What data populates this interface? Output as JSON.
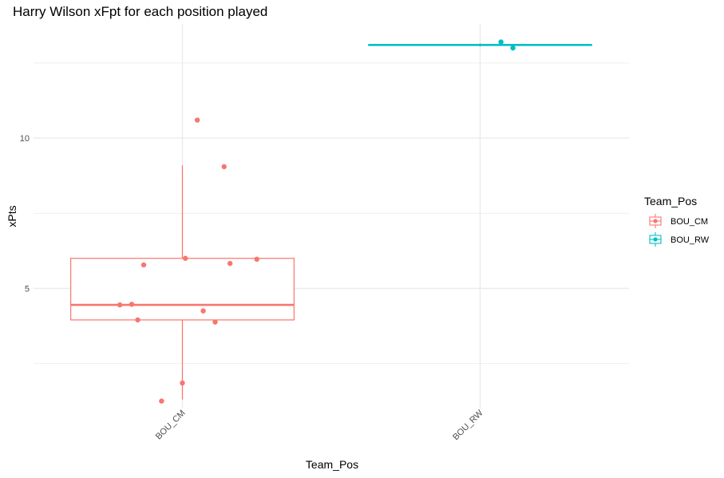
{
  "chart_data": {
    "type": "boxplot",
    "title": "Harry Wilson xFpt for each position played",
    "xlabel": "Team_Pos",
    "ylabel": "xPts",
    "categories": [
      "BOU_CM",
      "BOU_RW"
    ],
    "ylim": [
      1.0,
      13.8
    ],
    "yticks": [
      5,
      10
    ],
    "grid": true,
    "legend": {
      "title": "Team_Pos",
      "position": "right",
      "entries": [
        "BOU_CM",
        "BOU_RW"
      ]
    },
    "colors": {
      "BOU_CM": "#F8766D",
      "BOU_RW": "#00BFC4"
    },
    "series": [
      {
        "category": "BOU_CM",
        "box": {
          "min": 1.3,
          "q1": 3.95,
          "median": 4.45,
          "q3": 6.0,
          "max": 9.1
        },
        "points": [
          {
            "x_offset": 0.05,
            "y": 10.6
          },
          {
            "x_offset": 0.14,
            "y": 9.05
          },
          {
            "x_offset": 0.01,
            "y": 6.0
          },
          {
            "x_offset": 0.25,
            "y": 5.97
          },
          {
            "x_offset": 0.16,
            "y": 5.83
          },
          {
            "x_offset": -0.13,
            "y": 5.78
          },
          {
            "x_offset": -0.21,
            "y": 4.45
          },
          {
            "x_offset": -0.17,
            "y": 4.47
          },
          {
            "x_offset": 0.07,
            "y": 4.25
          },
          {
            "x_offset": -0.15,
            "y": 3.95
          },
          {
            "x_offset": 0.11,
            "y": 3.88
          },
          {
            "x_offset": 0.0,
            "y": 1.85
          },
          {
            "x_offset": -0.07,
            "y": 1.25
          }
        ]
      },
      {
        "category": "BOU_RW",
        "box": {
          "min": 13.05,
          "q1": 13.1,
          "median": 13.1,
          "q3": 13.1,
          "max": 13.15
        },
        "points": [
          {
            "x_offset": 0.07,
            "y": 13.2
          },
          {
            "x_offset": 0.11,
            "y": 13.0
          }
        ]
      }
    ]
  }
}
